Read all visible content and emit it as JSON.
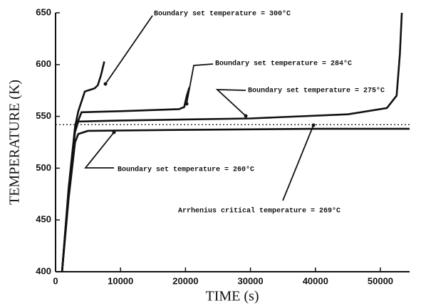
{
  "chart_data": {
    "type": "line",
    "xlabel": "TIME (s)",
    "ylabel": "TEMPERATURE (K)",
    "xlim": [
      0,
      54500
    ],
    "ylim": [
      400,
      650
    ],
    "xticks": [
      0,
      10000,
      20000,
      30000,
      40000,
      50000
    ],
    "yticks": [
      400,
      450,
      500,
      550,
      600,
      650
    ],
    "grid": false,
    "series": [
      {
        "color": "#111111",
        "dash": "solid",
        "x": [
          1000,
          2000,
          3000,
          3500,
          4500,
          6000,
          6500,
          7000,
          7500
        ],
        "values": [
          400,
          480,
          540,
          555,
          574,
          577,
          580,
          590,
          603
        ]
      },
      {
        "color": "#111111",
        "dash": "solid",
        "x": [
          1000,
          2000,
          3000,
          4000,
          10000,
          19000,
          19800,
          20200,
          20600
        ],
        "values": [
          400,
          478,
          538,
          554,
          555,
          557,
          559,
          570,
          578
        ]
      },
      {
        "color": "#111111",
        "dash": "solid",
        "x": [
          1000,
          2000,
          3000,
          3500,
          10000,
          30000,
          45000,
          51000,
          52500,
          53000,
          53300
        ],
        "values": [
          400,
          476,
          535,
          545,
          546,
          548,
          552,
          558,
          570,
          610,
          650
        ]
      },
      {
        "color": "#111111",
        "dash": "solid",
        "x": [
          1000,
          2000,
          3000,
          3500,
          5000,
          20000,
          40000,
          54500
        ],
        "values": [
          400,
          470,
          525,
          533,
          536,
          537,
          538,
          538
        ]
      },
      {
        "color": "#333333",
        "dash": "dotted",
        "x": [
          0,
          54500
        ],
        "values": [
          542,
          542
        ]
      }
    ],
    "annotations": [
      "Boundary set temperature = 300°C",
      "Boundary set temperature = 284°C",
      "Boundary set temperature = 275°C",
      "Boundary set temperature = 260°C",
      "Arrhenius critical temperature = 269°C"
    ]
  }
}
